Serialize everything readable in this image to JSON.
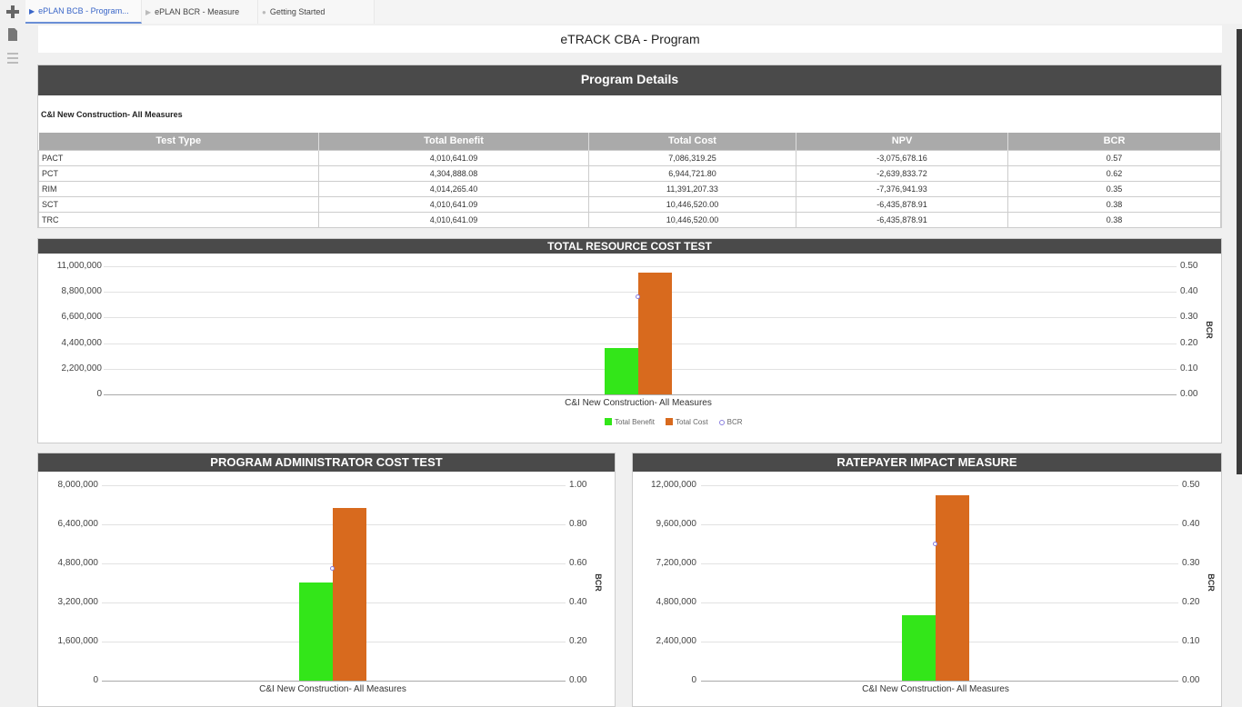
{
  "sidebar": {
    "icons": [
      "plus-icon",
      "document-icon",
      "list-icon"
    ]
  },
  "tabs": [
    {
      "label": "ePLAN BCB - Program...",
      "active": true
    },
    {
      "label": "ePLAN BCR - Measure",
      "active": false
    },
    {
      "label": "Getting Started",
      "active": false
    }
  ],
  "page": {
    "title": "eTRACK CBA - Program"
  },
  "details": {
    "header": "Program Details",
    "program_name": "C&I New Construction- All Measures",
    "columns": [
      "Test Type",
      "Total Benefit",
      "Total Cost",
      "NPV",
      "BCR"
    ],
    "rows": [
      [
        "PACT",
        "4,010,641.09",
        "7,086,319.25",
        "-3,075,678.16",
        "0.57"
      ],
      [
        "PCT",
        "4,304,888.08",
        "6,944,721.80",
        "-2,639,833.72",
        "0.62"
      ],
      [
        "RIM",
        "4,014,265.40",
        "11,391,207.33",
        "-7,376,941.93",
        "0.35"
      ],
      [
        "SCT",
        "4,010,641.09",
        "10,446,520.00",
        "-6,435,878.91",
        "0.38"
      ],
      [
        "TRC",
        "4,010,641.09",
        "10,446,520.00",
        "-6,435,878.91",
        "0.38"
      ]
    ]
  },
  "colors": {
    "benefit": "#33e619",
    "cost": "#d86a1e",
    "bcr": "#8a7fe0",
    "header": "#4a4a4a"
  },
  "chart_data": [
    {
      "type": "bar",
      "title": "TOTAL RESOURCE COST TEST",
      "categories": [
        "C&I New Construction- All Measures"
      ],
      "series": [
        {
          "name": "Total Benefit",
          "values": [
            4010641.09
          ]
        },
        {
          "name": "Total Cost",
          "values": [
            10446520.0
          ]
        },
        {
          "name": "BCR",
          "axis": "right",
          "values": [
            0.38
          ]
        }
      ],
      "yticks": [
        "11,000,000",
        "8,800,000",
        "6,600,000",
        "4,400,000",
        "2,200,000",
        "0"
      ],
      "y2ticks": [
        "0.50",
        "0.40",
        "0.30",
        "0.20",
        "0.10",
        "0.00"
      ],
      "ylim": [
        0,
        11000000
      ],
      "y2lim": [
        0,
        0.5
      ],
      "y2label": "BCR",
      "legend": [
        "Total Benefit",
        "Total Cost",
        "BCR"
      ]
    },
    {
      "type": "bar",
      "title": "PROGRAM ADMINISTRATOR COST TEST",
      "categories": [
        "C&I New Construction- All Measures"
      ],
      "series": [
        {
          "name": "Total Benefit",
          "values": [
            4010641.09
          ]
        },
        {
          "name": "Total Cost",
          "values": [
            7086319.25
          ]
        },
        {
          "name": "BCR",
          "axis": "right",
          "values": [
            0.57
          ]
        }
      ],
      "yticks": [
        "8,000,000",
        "6,400,000",
        "4,800,000",
        "3,200,000",
        "1,600,000",
        "0"
      ],
      "y2ticks": [
        "1.00",
        "0.80",
        "0.60",
        "0.40",
        "0.20",
        "0.00"
      ],
      "ylim": [
        0,
        8000000
      ],
      "y2lim": [
        0,
        1.0
      ],
      "y2label": "BCR"
    },
    {
      "type": "bar",
      "title": "RATEPAYER IMPACT MEASURE",
      "categories": [
        "C&I New Construction- All Measures"
      ],
      "series": [
        {
          "name": "Total Benefit",
          "values": [
            4014265.4
          ]
        },
        {
          "name": "Total Cost",
          "values": [
            11391207.33
          ]
        },
        {
          "name": "BCR",
          "axis": "right",
          "values": [
            0.35
          ]
        }
      ],
      "yticks": [
        "12,000,000",
        "9,600,000",
        "7,200,000",
        "4,800,000",
        "2,400,000",
        "0"
      ],
      "y2ticks": [
        "0.50",
        "0.40",
        "0.30",
        "0.20",
        "0.10",
        "0.00"
      ],
      "ylim": [
        0,
        12000000
      ],
      "y2lim": [
        0,
        0.5
      ],
      "y2label": "BCR"
    }
  ]
}
